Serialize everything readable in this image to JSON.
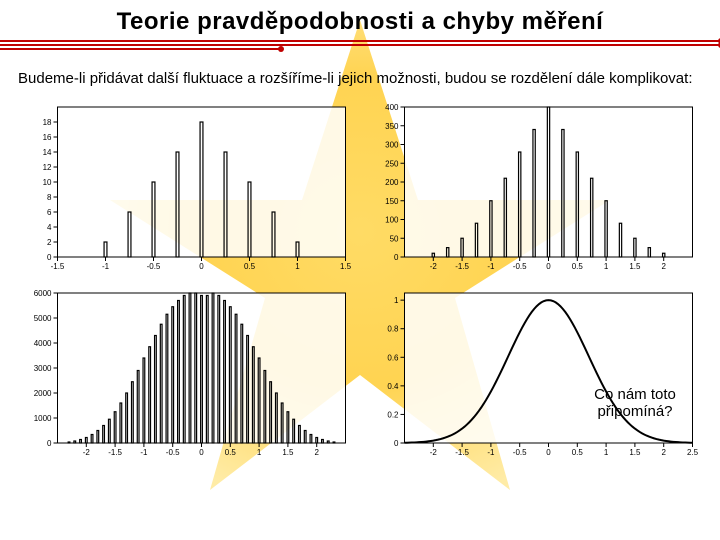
{
  "title": "Teorie pravděpodobnosti a chyby měření",
  "intro": "Budeme-li přidávat další fluktuace a rozšíříme-li jejich možnosti, budou se rozdělení dále komplikovat:",
  "annotation": "Co nám toto připomíná?",
  "ruleColor": "#c00000",
  "axisColor": "#000000",
  "lineColor": "#000000",
  "tickFontSize": 8,
  "chart1": {
    "type": "bar",
    "xlim": [
      -1.5,
      1.5
    ],
    "ylim": [
      0,
      20
    ],
    "xticks": [
      -1.5,
      -1,
      -0.5,
      0,
      0.5,
      1,
      1.5
    ],
    "yticks": [
      0,
      2,
      4,
      6,
      8,
      10,
      12,
      14,
      16,
      18
    ],
    "bars": [
      {
        "x": -1.0,
        "y": 2
      },
      {
        "x": -0.75,
        "y": 6
      },
      {
        "x": -0.5,
        "y": 10
      },
      {
        "x": -0.25,
        "y": 14
      },
      {
        "x": 0.0,
        "y": 18
      },
      {
        "x": 0.25,
        "y": 14
      },
      {
        "x": 0.5,
        "y": 10
      },
      {
        "x": 0.75,
        "y": 6
      },
      {
        "x": 1.0,
        "y": 2
      }
    ],
    "barWidth": 0.03
  },
  "chart2": {
    "type": "bar",
    "xlim": [
      -2.5,
      2.5
    ],
    "ylim": [
      0,
      400
    ],
    "xticks": [
      -2,
      -1.5,
      -1,
      -0.5,
      0,
      0.5,
      1,
      1.5,
      2
    ],
    "yticks": [
      0,
      50,
      100,
      150,
      200,
      250,
      300,
      350,
      400
    ],
    "bars": [
      {
        "x": -2.0,
        "y": 10
      },
      {
        "x": -1.75,
        "y": 25
      },
      {
        "x": -1.5,
        "y": 50
      },
      {
        "x": -1.25,
        "y": 90
      },
      {
        "x": -1.0,
        "y": 150
      },
      {
        "x": -0.75,
        "y": 210
      },
      {
        "x": -0.5,
        "y": 280
      },
      {
        "x": -0.25,
        "y": 340
      },
      {
        "x": 0.0,
        "y": 400
      },
      {
        "x": 0.25,
        "y": 340
      },
      {
        "x": 0.5,
        "y": 280
      },
      {
        "x": 0.75,
        "y": 210
      },
      {
        "x": 1.0,
        "y": 150
      },
      {
        "x": 1.25,
        "y": 90
      },
      {
        "x": 1.5,
        "y": 50
      },
      {
        "x": 1.75,
        "y": 25
      },
      {
        "x": 2.0,
        "y": 10
      }
    ],
    "barWidth": 0.04
  },
  "chart3": {
    "type": "bar",
    "xlim": [
      -2.5,
      2.5
    ],
    "ylim": [
      0,
      6000
    ],
    "xticks": [
      -2,
      -1.5,
      -1,
      -0.5,
      0,
      0.5,
      1,
      1.5,
      2
    ],
    "yticks": [
      0,
      1000,
      2000,
      3000,
      4000,
      5000,
      6000
    ],
    "bars": [
      {
        "x": -2.3,
        "y": 40
      },
      {
        "x": -2.2,
        "y": 80
      },
      {
        "x": -2.1,
        "y": 140
      },
      {
        "x": -2.0,
        "y": 220
      },
      {
        "x": -1.9,
        "y": 340
      },
      {
        "x": -1.8,
        "y": 500
      },
      {
        "x": -1.7,
        "y": 700
      },
      {
        "x": -1.6,
        "y": 950
      },
      {
        "x": -1.5,
        "y": 1250
      },
      {
        "x": -1.4,
        "y": 1600
      },
      {
        "x": -1.3,
        "y": 2000
      },
      {
        "x": -1.2,
        "y": 2450
      },
      {
        "x": -1.1,
        "y": 2900
      },
      {
        "x": -1.0,
        "y": 3400
      },
      {
        "x": -0.9,
        "y": 3850
      },
      {
        "x": -0.8,
        "y": 4300
      },
      {
        "x": -0.7,
        "y": 4750
      },
      {
        "x": -0.6,
        "y": 5150
      },
      {
        "x": -0.5,
        "y": 5450
      },
      {
        "x": -0.4,
        "y": 5700
      },
      {
        "x": -0.3,
        "y": 5900
      },
      {
        "x": -0.2,
        "y": 6000
      },
      {
        "x": -0.1,
        "y": 6000
      },
      {
        "x": 0.0,
        "y": 5900
      },
      {
        "x": 0.1,
        "y": 5900
      },
      {
        "x": 0.2,
        "y": 6000
      },
      {
        "x": 0.3,
        "y": 5900
      },
      {
        "x": 0.4,
        "y": 5700
      },
      {
        "x": 0.5,
        "y": 5450
      },
      {
        "x": 0.6,
        "y": 5150
      },
      {
        "x": 0.7,
        "y": 4750
      },
      {
        "x": 0.8,
        "y": 4300
      },
      {
        "x": 0.9,
        "y": 3850
      },
      {
        "x": 1.0,
        "y": 3400
      },
      {
        "x": 1.1,
        "y": 2900
      },
      {
        "x": 1.2,
        "y": 2450
      },
      {
        "x": 1.3,
        "y": 2000
      },
      {
        "x": 1.4,
        "y": 1600
      },
      {
        "x": 1.5,
        "y": 1250
      },
      {
        "x": 1.6,
        "y": 950
      },
      {
        "x": 1.7,
        "y": 700
      },
      {
        "x": 1.8,
        "y": 500
      },
      {
        "x": 1.9,
        "y": 340
      },
      {
        "x": 2.0,
        "y": 220
      },
      {
        "x": 2.1,
        "y": 140
      },
      {
        "x": 2.2,
        "y": 80
      },
      {
        "x": 2.3,
        "y": 40
      }
    ],
    "barWidth": 0.03
  },
  "chart4": {
    "type": "line",
    "xlim": [
      -2.5,
      2.5
    ],
    "ylim": [
      0,
      1.05
    ],
    "xticks": [
      -2,
      -1.5,
      -1,
      -0.5,
      0,
      0.5,
      1,
      1.5,
      2,
      2.5
    ],
    "yticks": [
      0,
      0.2,
      0.4,
      0.6,
      0.8,
      1
    ],
    "lineWidth": 2,
    "sigma": 0.7
  }
}
